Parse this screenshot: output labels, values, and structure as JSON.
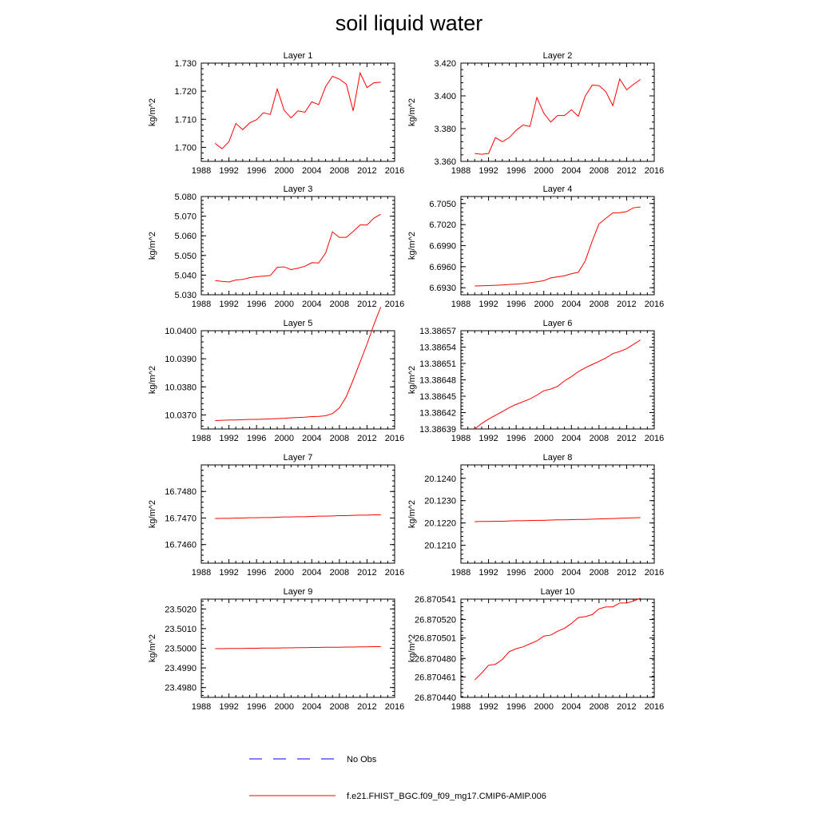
{
  "title": "soil liquid water",
  "colors": {
    "model": "#ff0000",
    "obs": "#0000ff",
    "axis": "#000000"
  },
  "legend": [
    {
      "label": "No Obs",
      "style": "dashed",
      "color": "#0000ff"
    },
    {
      "label": "f.e21.FHIST_BGC.f09_f09_mg17.CMIP6-AMIP.006",
      "style": "solid",
      "color": "#ff0000"
    }
  ],
  "chart_data": [
    {
      "type": "line",
      "title": "Layer 1",
      "ylabel": "kg/m^2",
      "xlim": [
        1988,
        2016
      ],
      "xticks": [
        "1988",
        "1992",
        "1996",
        "2000",
        "2004",
        "2008",
        "2012",
        "2016"
      ],
      "ylim": [
        1.695,
        1.73
      ],
      "yticks": [
        "1.700",
        "1.710",
        "1.720",
        "1.730"
      ],
      "x": [
        1990,
        1991,
        1992,
        1993,
        1994,
        1995,
        1996,
        1997,
        1998,
        1999,
        2000,
        2001,
        2002,
        2003,
        2004,
        2005,
        2006,
        2007,
        2008,
        2009,
        2010,
        2011,
        2012,
        2013,
        2014
      ],
      "series": [
        {
          "values": [
            1.7014,
            1.6995,
            1.702,
            1.7085,
            1.7063,
            1.7087,
            1.7098,
            1.7123,
            1.7117,
            1.7208,
            1.7132,
            1.7105,
            1.713,
            1.7125,
            1.7162,
            1.7152,
            1.7216,
            1.7253,
            1.7243,
            1.7225,
            1.713,
            1.7265,
            1.7213,
            1.723,
            1.7232
          ]
        }
      ]
    },
    {
      "type": "line",
      "title": "Layer 2",
      "ylabel": "kg/m^2",
      "xlim": [
        1988,
        2016
      ],
      "xticks": [
        "1988",
        "1992",
        "1996",
        "2000",
        "2004",
        "2008",
        "2012",
        "2016"
      ],
      "ylim": [
        3.36,
        3.42
      ],
      "yticks": [
        "3.360",
        "3.380",
        "3.400",
        "3.420"
      ],
      "x": [
        1990,
        1991,
        1992,
        1993,
        1994,
        1995,
        1996,
        1997,
        1998,
        1999,
        2000,
        2001,
        2002,
        2003,
        2004,
        2005,
        2006,
        2007,
        2008,
        2009,
        2010,
        2011,
        2012,
        2013,
        2014
      ],
      "series": [
        {
          "values": [
            3.3648,
            3.3643,
            3.3648,
            3.3745,
            3.372,
            3.3745,
            3.379,
            3.3822,
            3.3813,
            3.399,
            3.3895,
            3.384,
            3.388,
            3.388,
            3.3915,
            3.3875,
            3.3998,
            3.4065,
            3.4063,
            3.4025,
            3.394,
            3.4103,
            3.4037,
            3.407,
            3.41
          ]
        }
      ]
    },
    {
      "type": "line",
      "title": "Layer 3",
      "ylabel": "kg/m^2",
      "xlim": [
        1988,
        2016
      ],
      "xticks": [
        "1988",
        "1992",
        "1996",
        "2000",
        "2004",
        "2008",
        "2012",
        "2016"
      ],
      "ylim": [
        5.03,
        5.08
      ],
      "yticks": [
        "5.030",
        "5.040",
        "5.050",
        "5.060",
        "5.070",
        "5.080"
      ],
      "x": [
        1990,
        1991,
        1992,
        1993,
        1994,
        1995,
        1996,
        1997,
        1998,
        1999,
        2000,
        2001,
        2002,
        2003,
        2004,
        2005,
        2006,
        2007,
        2008,
        2009,
        2010,
        2011,
        2012,
        2013,
        2014
      ],
      "series": [
        {
          "values": [
            5.0372,
            5.0368,
            5.0365,
            5.0375,
            5.0378,
            5.0387,
            5.0392,
            5.0395,
            5.0398,
            5.044,
            5.0442,
            5.0428,
            5.0435,
            5.0445,
            5.0463,
            5.0462,
            5.0512,
            5.062,
            5.0592,
            5.0592,
            5.0622,
            5.0655,
            5.0655,
            5.069,
            5.071
          ]
        }
      ]
    },
    {
      "type": "line",
      "title": "Layer 4",
      "ylabel": "kg/m^2",
      "xlim": [
        1988,
        2016
      ],
      "xticks": [
        "1988",
        "1992",
        "1996",
        "2000",
        "2004",
        "2008",
        "2012",
        "2016"
      ],
      "ylim": [
        6.692,
        6.706
      ],
      "yticks": [
        "6.6930",
        "6.6960",
        "6.6990",
        "6.7020",
        "6.7050"
      ],
      "x": [
        1990,
        1991,
        1992,
        1993,
        1994,
        1995,
        1996,
        1997,
        1998,
        1999,
        2000,
        2001,
        2002,
        2003,
        2004,
        2005,
        2006,
        2007,
        2008,
        2009,
        2010,
        2011,
        2012,
        2013,
        2014
      ],
      "series": [
        {
          "values": [
            6.69325,
            6.69328,
            6.69331,
            6.69335,
            6.6934,
            6.69346,
            6.69352,
            6.6936,
            6.69372,
            6.69385,
            6.694,
            6.6944,
            6.69455,
            6.6947,
            6.695,
            6.6952,
            6.6968,
            6.6996,
            6.7021,
            6.7029,
            6.70365,
            6.7037,
            6.70385,
            6.7044,
            6.7045
          ]
        }
      ]
    },
    {
      "type": "line",
      "title": "Layer 5",
      "ylabel": "kg/m^2",
      "xlim": [
        1988,
        2016
      ],
      "xticks": [
        "1988",
        "1992",
        "1996",
        "2000",
        "2004",
        "2008",
        "2012",
        "2016"
      ],
      "ylim": [
        10.0365,
        10.04
      ],
      "yticks": [
        "10.0370",
        "10.0380",
        "10.0390",
        "10.0400"
      ],
      "x": [
        1990,
        1991,
        1992,
        1993,
        1994,
        1995,
        1996,
        1997,
        1998,
        1999,
        2000,
        2001,
        2002,
        2003,
        2004,
        2005,
        2006,
        2007,
        2008,
        2009,
        2010,
        2011,
        2012,
        2013,
        2014
      ],
      "series": [
        {
          "values": [
            10.0368,
            10.03681,
            10.03682,
            10.03682,
            10.03683,
            10.03684,
            10.03684,
            10.03685,
            10.03686,
            10.03687,
            10.03688,
            10.0369,
            10.03691,
            10.03692,
            10.03694,
            10.03695,
            10.03697,
            10.03705,
            10.03725,
            10.03765,
            10.03825,
            10.03888,
            10.03952,
            10.04022,
            10.04085
          ]
        }
      ]
    },
    {
      "type": "line",
      "title": "Layer 6",
      "ylabel": "kg/m^2",
      "xlim": [
        1988,
        2016
      ],
      "xticks": [
        "1988",
        "1992",
        "1996",
        "2000",
        "2004",
        "2008",
        "2012",
        "2016"
      ],
      "ylim": [
        13.38639,
        13.38657
      ],
      "yticks": [
        "13.38639",
        "13.38642",
        "13.38645",
        "13.38648",
        "13.38651",
        "13.38654",
        "13.38657"
      ],
      "x": [
        1990,
        1991,
        1992,
        1993,
        1994,
        1995,
        1996,
        1997,
        1998,
        1999,
        2000,
        2001,
        2002,
        2003,
        2004,
        2005,
        2006,
        2007,
        2008,
        2009,
        2010,
        2011,
        2012,
        2013,
        2014
      ],
      "series": [
        {
          "values": [
            13.38639,
            13.3864,
            13.386408,
            13.386415,
            13.386422,
            13.386429,
            13.386435,
            13.38644,
            13.386445,
            13.386452,
            13.38646,
            13.386463,
            13.386468,
            13.386478,
            13.386486,
            13.386495,
            13.386502,
            13.386508,
            13.386514,
            13.38652,
            13.386528,
            13.386532,
            13.386537,
            13.386545,
            13.386553
          ]
        }
      ]
    },
    {
      "type": "line",
      "title": "Layer 7",
      "ylabel": "kg/m^2",
      "xlim": [
        1988,
        2016
      ],
      "xticks": [
        "1988",
        "1992",
        "1996",
        "2000",
        "2004",
        "2008",
        "2012",
        "2016"
      ],
      "ylim": [
        16.7453,
        16.749
      ],
      "yticks": [
        "16.7460",
        "16.7470",
        "16.7480"
      ],
      "x": [
        1990,
        1991,
        1992,
        1993,
        1994,
        1995,
        1996,
        1997,
        1998,
        1999,
        2000,
        2001,
        2002,
        2003,
        2004,
        2005,
        2006,
        2007,
        2008,
        2009,
        2010,
        2011,
        2012,
        2013,
        2014
      ],
      "series": [
        {
          "values": [
            16.74698,
            16.74699,
            16.74699,
            16.747,
            16.747,
            16.74701,
            16.74701,
            16.74702,
            16.74702,
            16.74703,
            16.74704,
            16.74704,
            16.74705,
            16.74705,
            16.74706,
            16.74707,
            16.74707,
            16.74708,
            16.74709,
            16.74709,
            16.7471,
            16.74711,
            16.74711,
            16.74712,
            16.74712
          ]
        }
      ]
    },
    {
      "type": "line",
      "title": "Layer 8",
      "ylabel": "kg/m^2",
      "xlim": [
        1988,
        2016
      ],
      "xticks": [
        "1988",
        "1992",
        "1996",
        "2000",
        "2004",
        "2008",
        "2012",
        "2016"
      ],
      "ylim": [
        20.1202,
        20.1246
      ],
      "yticks": [
        "20.1210",
        "20.1220",
        "20.1230",
        "20.1240"
      ],
      "x": [
        1990,
        1991,
        1992,
        1993,
        1994,
        1995,
        1996,
        1997,
        1998,
        1999,
        2000,
        2001,
        2002,
        2003,
        2004,
        2005,
        2006,
        2007,
        2008,
        2009,
        2010,
        2011,
        2012,
        2013,
        2014
      ],
      "series": [
        {
          "values": [
            20.12206,
            20.12207,
            20.12207,
            20.12208,
            20.12208,
            20.12209,
            20.1221,
            20.1221,
            20.12211,
            20.12212,
            20.12212,
            20.12213,
            20.12214,
            20.12214,
            20.12215,
            20.12216,
            20.12216,
            20.12217,
            20.12218,
            20.12219,
            20.1222,
            20.12221,
            20.12222,
            20.12223,
            20.12224
          ]
        }
      ]
    },
    {
      "type": "line",
      "title": "Layer 9",
      "ylabel": "kg/m^2",
      "xlim": [
        1988,
        2016
      ],
      "xticks": [
        "1988",
        "1992",
        "1996",
        "2000",
        "2004",
        "2008",
        "2012",
        "2016"
      ],
      "ylim": [
        23.4975,
        23.5025
      ],
      "yticks": [
        "23.4980",
        "23.4990",
        "23.5000",
        "23.5010",
        "23.5020"
      ],
      "x": [
        1990,
        1991,
        1992,
        1993,
        1994,
        1995,
        1996,
        1997,
        1998,
        1999,
        2000,
        2001,
        2002,
        2003,
        2004,
        2005,
        2006,
        2007,
        2008,
        2009,
        2010,
        2011,
        2012,
        2013,
        2014
      ],
      "series": [
        {
          "values": [
            23.49998,
            23.49998,
            23.49999,
            23.49999,
            23.49999,
            23.5,
            23.5,
            23.50001,
            23.50001,
            23.50001,
            23.50002,
            23.50002,
            23.50003,
            23.50003,
            23.50004,
            23.50004,
            23.50005,
            23.50005,
            23.50005,
            23.50006,
            23.50006,
            23.50007,
            23.50007,
            23.50008,
            23.50008
          ]
        }
      ]
    },
    {
      "type": "line",
      "title": "Layer 10",
      "ylabel": "kg/m^2",
      "xlim": [
        1988,
        2016
      ],
      "xticks": [
        "1988",
        "1992",
        "1996",
        "2000",
        "2004",
        "2008",
        "2012",
        "2016"
      ],
      "ylim": [
        26.87044,
        26.870541
      ],
      "yticks": [
        "26.870440",
        "26.870461",
        "26.870480",
        "26.870501",
        "26.870520",
        "26.870541"
      ],
      "x": [
        1990,
        1991,
        1992,
        1993,
        1994,
        1995,
        1996,
        1997,
        1998,
        1999,
        2000,
        2001,
        2002,
        2003,
        2004,
        2005,
        2006,
        2007,
        2008,
        2009,
        2010,
        2011,
        2012,
        2013,
        2014
      ],
      "series": [
        {
          "values": [
            26.870458,
            26.870465,
            26.870473,
            26.870474,
            26.870479,
            26.870487,
            26.87049,
            26.870492,
            26.870495,
            26.870498,
            26.870503,
            26.870504,
            26.870508,
            26.870511,
            26.870516,
            26.870522,
            26.870523,
            26.870525,
            26.870531,
            26.870533,
            26.870533,
            26.870537,
            26.870537,
            26.870539,
            26.870542
          ]
        }
      ]
    }
  ]
}
